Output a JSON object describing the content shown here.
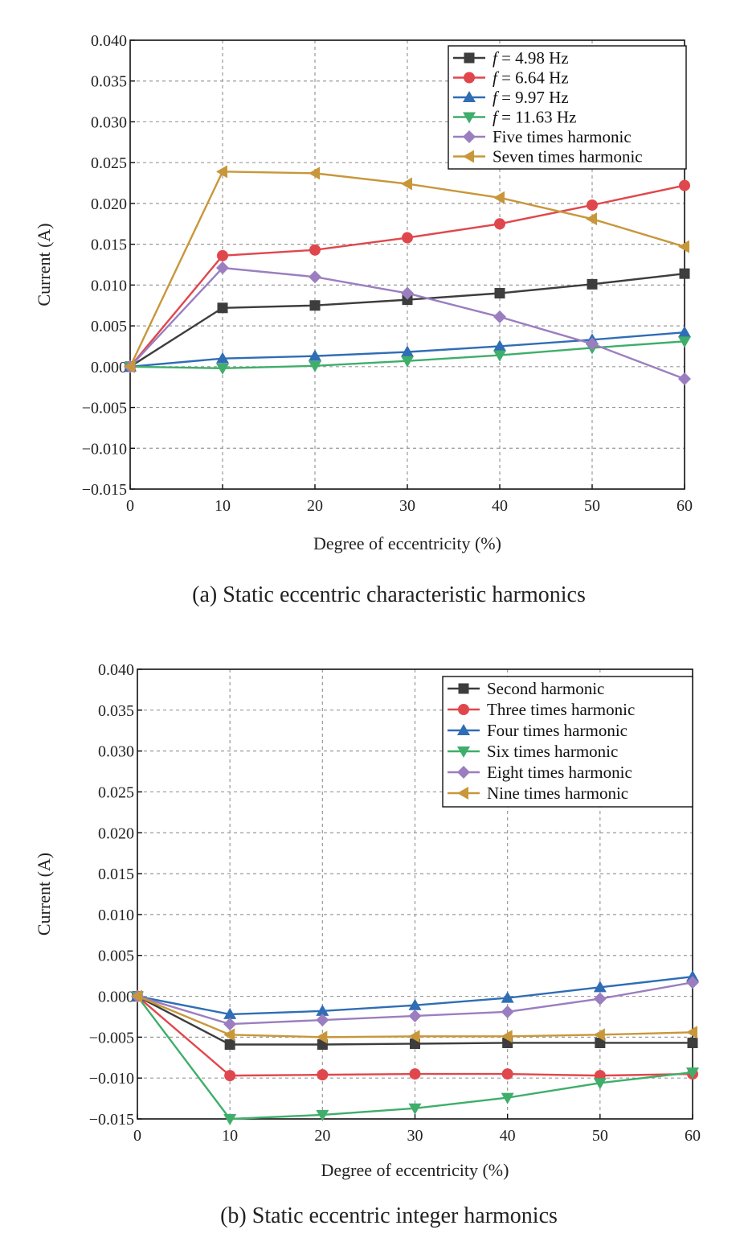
{
  "chart_data": [
    {
      "type": "line",
      "caption": "(a) Static eccentric characteristic harmonics",
      "xlabel": "Degree of eccentricity (%)",
      "ylabel": "Current (A)",
      "x": [
        0,
        10,
        20,
        30,
        40,
        50,
        60
      ],
      "xlim": [
        0,
        60
      ],
      "ylim": [
        -0.015,
        0.04
      ],
      "xticks": [
        0,
        10,
        20,
        30,
        40,
        50,
        60
      ],
      "yticks": [
        -0.015,
        -0.01,
        -0.005,
        0.0,
        0.005,
        0.01,
        0.015,
        0.02,
        0.025,
        0.03,
        0.035,
        0.04
      ],
      "grid": true,
      "legend_position": "top-right",
      "series": [
        {
          "name": "f = 4.98 Hz",
          "legend_italic_prefix": "f",
          "legend_rest": " = 4.98 Hz",
          "color": "#3d3d3d",
          "marker": "square",
          "values": [
            0.0,
            0.0072,
            0.0075,
            0.0082,
            0.009,
            0.0101,
            0.0114
          ]
        },
        {
          "name": "f = 6.64 Hz",
          "legend_italic_prefix": "f",
          "legend_rest": " = 6.64 Hz",
          "color": "#e0474c",
          "marker": "circle",
          "values": [
            0.0,
            0.0136,
            0.0143,
            0.0158,
            0.0175,
            0.0198,
            0.0222
          ]
        },
        {
          "name": "f = 9.97 Hz",
          "legend_italic_prefix": "f",
          "legend_rest": " = 9.97 Hz",
          "color": "#2f6db5",
          "marker": "triangle-up",
          "values": [
            0.0,
            0.001,
            0.0013,
            0.0018,
            0.0025,
            0.0033,
            0.0042
          ]
        },
        {
          "name": "f = 11.63 Hz",
          "legend_italic_prefix": "f",
          "legend_rest": " = 11.63 Hz",
          "color": "#3fae6a",
          "marker": "triangle-down",
          "values": [
            0.0,
            -0.0002,
            0.0001,
            0.0007,
            0.0014,
            0.0023,
            0.0031
          ]
        },
        {
          "name": "Five times harmonic",
          "color": "#9b7ec0",
          "marker": "diamond",
          "values": [
            0.0,
            0.0121,
            0.011,
            0.009,
            0.0061,
            0.0028,
            -0.0015
          ]
        },
        {
          "name": "Seven times harmonic",
          "color": "#c8973a",
          "marker": "triangle-left",
          "values": [
            0.0,
            0.0239,
            0.0237,
            0.0224,
            0.0207,
            0.0181,
            0.0147
          ]
        }
      ]
    },
    {
      "type": "line",
      "caption": "(b) Static eccentric integer harmonics",
      "xlabel": "Degree of eccentricity (%)",
      "ylabel": "Current (A)",
      "x": [
        0,
        10,
        20,
        30,
        40,
        50,
        60
      ],
      "xlim": [
        0,
        60
      ],
      "ylim": [
        -0.015,
        0.04
      ],
      "xticks": [
        0,
        10,
        20,
        30,
        40,
        50,
        60
      ],
      "yticks": [
        -0.015,
        -0.01,
        -0.005,
        0.0,
        0.005,
        0.01,
        0.015,
        0.02,
        0.025,
        0.03,
        0.035,
        0.04
      ],
      "grid": true,
      "legend_position": "top-right",
      "series": [
        {
          "name": "Second harmonic",
          "color": "#3d3d3d",
          "marker": "square",
          "values": [
            0.0,
            -0.0059,
            -0.0059,
            -0.0058,
            -0.0057,
            -0.0057,
            -0.0057
          ]
        },
        {
          "name": "Three times harmonic",
          "color": "#e0474c",
          "marker": "circle",
          "values": [
            0.0,
            -0.0097,
            -0.0096,
            -0.0095,
            -0.0095,
            -0.0097,
            -0.0095
          ]
        },
        {
          "name": "Four times harmonic",
          "color": "#2f6db5",
          "marker": "triangle-up",
          "values": [
            0.0,
            -0.0022,
            -0.0018,
            -0.0011,
            -0.0002,
            0.0011,
            0.0024
          ]
        },
        {
          "name": "Six times harmonic",
          "color": "#3fae6a",
          "marker": "triangle-down",
          "values": [
            0.0,
            -0.015,
            -0.0145,
            -0.0137,
            -0.0124,
            -0.0106,
            -0.0093
          ]
        },
        {
          "name": "Eight times harmonic",
          "color": "#9b7ec0",
          "marker": "diamond",
          "values": [
            0.0,
            -0.0034,
            -0.0029,
            -0.0024,
            -0.0019,
            -0.0003,
            0.0017
          ]
        },
        {
          "name": "Nine times harmonic",
          "color": "#c8973a",
          "marker": "triangle-left",
          "values": [
            0.0,
            -0.0047,
            -0.005,
            -0.0049,
            -0.0049,
            -0.0047,
            -0.0044
          ]
        }
      ]
    }
  ]
}
